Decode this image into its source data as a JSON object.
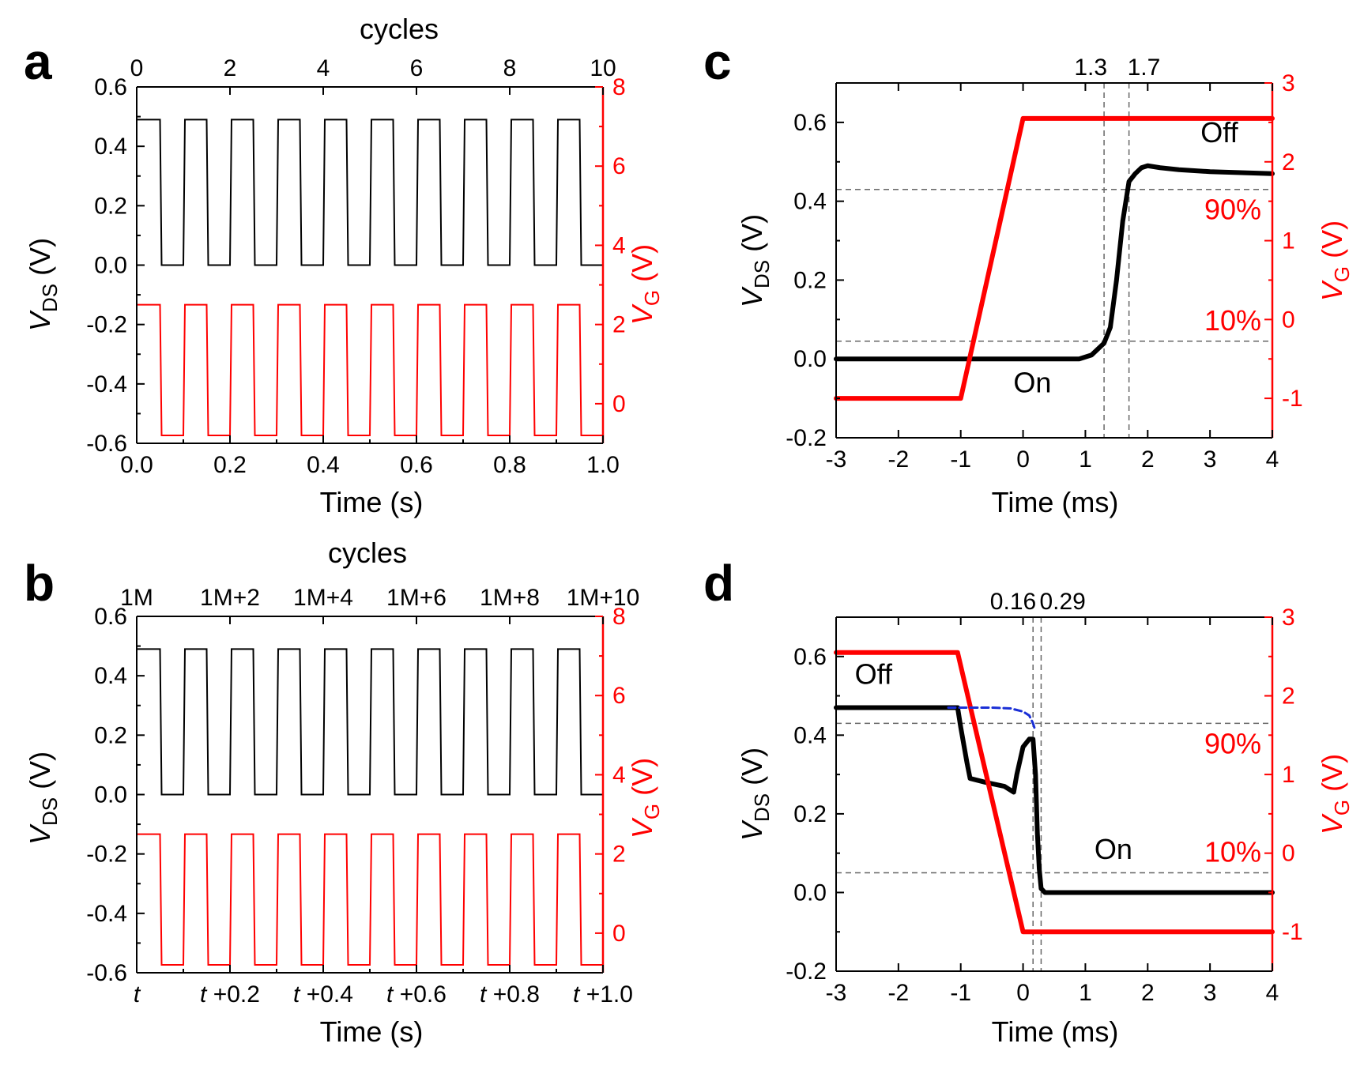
{
  "colors": {
    "vds": "#000000",
    "vg": "#ff0000",
    "guide": "#666666",
    "fit": "#1a2fd6"
  },
  "chart_data": [
    {
      "id": "a",
      "type": "line",
      "panel_label": "a",
      "xlabel": "Time (s)",
      "top_label": "cycles",
      "ylabel": {
        "main": "V",
        "sub": "DS",
        "unit": " (V)"
      },
      "y2label": {
        "main": "V",
        "sub": "G",
        "unit": " (V)"
      },
      "xlim": [
        0,
        1.0
      ],
      "ylim": [
        -0.6,
        0.6
      ],
      "y2lim": [
        -1.0,
        8.0
      ],
      "x_ticks": [
        "0.0",
        "0.2",
        "0.4",
        "0.6",
        "0.8",
        "1.0"
      ],
      "y_ticks": [
        "-0.6",
        "-0.4",
        "-0.2",
        "0.0",
        "0.2",
        "0.4",
        "0.6"
      ],
      "y2_ticks": [
        "0",
        "2",
        "4",
        "6",
        "8"
      ],
      "top_ticks": [
        "0",
        "2",
        "4",
        "6",
        "8",
        "10"
      ],
      "square_wave": {
        "period_s": 0.1,
        "start_s": 0.0,
        "end_s": 1.0,
        "first_fall_s": 0.05,
        "vds_high": 0.49,
        "vds_low": 0.0,
        "vg_high": 2.5,
        "vg_low": -0.8
      },
      "series": [
        {
          "name": "V_DS",
          "axis": "left"
        },
        {
          "name": "V_G",
          "axis": "right"
        }
      ]
    },
    {
      "id": "b",
      "type": "line",
      "panel_label": "b",
      "xlabel": "Time (s)",
      "top_label": "cycles",
      "ylabel": {
        "main": "V",
        "sub": "DS",
        "unit": " (V)"
      },
      "y2label": {
        "main": "V",
        "sub": "G",
        "unit": " (V)"
      },
      "xlim": [
        0,
        1.0
      ],
      "ylim": [
        -0.6,
        0.6
      ],
      "y2lim": [
        -1.0,
        8.0
      ],
      "x_ticks": [
        {
          "t": "t",
          "s": ""
        },
        {
          "t": "t",
          "s": " +0.2"
        },
        {
          "t": "t",
          "s": " +0.4"
        },
        {
          "t": "t",
          "s": " +0.6"
        },
        {
          "t": "t",
          "s": " +0.8"
        },
        {
          "t": "t",
          "s": " +1.0"
        }
      ],
      "y_ticks": [
        "-0.6",
        "-0.4",
        "-0.2",
        "0.0",
        "0.2",
        "0.4",
        "0.6"
      ],
      "y2_ticks": [
        "0",
        "2",
        "4",
        "6",
        "8"
      ],
      "top_ticks": [
        "1M",
        "1M+2",
        "1M+4",
        "1M+6",
        "1M+8",
        "1M+10"
      ],
      "square_wave": {
        "period_s": 0.1,
        "start_s": 0.0,
        "end_s": 1.0,
        "first_fall_s": 0.05,
        "vds_high": 0.49,
        "vds_low": 0.0,
        "vg_high": 2.5,
        "vg_low": -0.8
      },
      "series": [
        {
          "name": "V_DS",
          "axis": "left"
        },
        {
          "name": "V_G",
          "axis": "right"
        }
      ]
    },
    {
      "id": "c",
      "type": "line",
      "panel_label": "c",
      "xlabel": "Time (ms)",
      "ylabel": {
        "main": "V",
        "sub": "DS",
        "unit": " (V)"
      },
      "y2label": {
        "main": "V",
        "sub": "G",
        "unit": " (V)"
      },
      "xlim": [
        -3,
        4
      ],
      "ylim": [
        -0.2,
        0.7
      ],
      "y2lim": [
        -1.5,
        3.0
      ],
      "x_ticks": [
        "-3",
        "-2",
        "-1",
        "0",
        "1",
        "2",
        "3",
        "4"
      ],
      "y_ticks": [
        "-0.2",
        "0.0",
        "0.2",
        "0.4",
        "0.6"
      ],
      "y2_ticks": [
        "-1",
        "0",
        "1",
        "2",
        "3"
      ],
      "vlines": [
        {
          "x": 1.3,
          "label": "1.3"
        },
        {
          "x": 1.7,
          "label": "1.7"
        }
      ],
      "hlines": [
        {
          "y": 0.43,
          "label": "90%"
        },
        {
          "y": 0.045,
          "label": "10%"
        }
      ],
      "annotations": [
        {
          "text": "Off",
          "x": 3.15,
          "y": 0.55
        },
        {
          "text": "On",
          "x": 0.15,
          "y": -0.085
        }
      ],
      "series": [
        {
          "name": "V_DS",
          "axis": "left",
          "x": [
            -3,
            -1,
            0.5,
            0.9,
            1.1,
            1.3,
            1.4,
            1.5,
            1.6,
            1.7,
            1.8,
            1.9,
            2.0,
            2.2,
            2.5,
            3.0,
            4.0
          ],
          "y": [
            0.0,
            0.0,
            0.0,
            0.0,
            0.01,
            0.04,
            0.08,
            0.2,
            0.35,
            0.45,
            0.47,
            0.485,
            0.49,
            0.485,
            0.48,
            0.475,
            0.47
          ]
        },
        {
          "name": "V_G",
          "axis": "right",
          "x": [
            -3,
            -1,
            0,
            4
          ],
          "y": [
            -1.0,
            -1.0,
            2.55,
            2.55
          ]
        }
      ]
    },
    {
      "id": "d",
      "type": "line",
      "panel_label": "d",
      "xlabel": "Time (ms)",
      "ylabel": {
        "main": "V",
        "sub": "DS",
        "unit": " (V)"
      },
      "y2label": {
        "main": "V",
        "sub": "G",
        "unit": " (V)"
      },
      "xlim": [
        -3,
        4
      ],
      "ylim": [
        -0.2,
        0.7
      ],
      "y2lim": [
        -1.5,
        3.0
      ],
      "x_ticks": [
        "-3",
        "-2",
        "-1",
        "0",
        "1",
        "2",
        "3",
        "4"
      ],
      "y_ticks": [
        "-0.2",
        "0.0",
        "0.2",
        "0.4",
        "0.6"
      ],
      "y2_ticks": [
        "-1",
        "0",
        "1",
        "2",
        "3"
      ],
      "vlines": [
        {
          "x": 0.16,
          "label": "0.16"
        },
        {
          "x": 0.29,
          "label": "0.29"
        }
      ],
      "hlines": [
        {
          "y": 0.43,
          "label": "90%"
        },
        {
          "y": 0.05,
          "label": "10%"
        }
      ],
      "annotations": [
        {
          "text": "Off",
          "x": -2.4,
          "y": 0.53
        },
        {
          "text": "On",
          "x": 1.45,
          "y": 0.085
        }
      ],
      "series": [
        {
          "name": "V_DS",
          "axis": "left",
          "x": [
            -3,
            -1.2,
            -1.05,
            -1.0,
            -0.9,
            -0.85,
            -0.6,
            -0.3,
            -0.15,
            -0.1,
            0.0,
            0.1,
            0.16,
            0.2,
            0.23,
            0.26,
            0.29,
            0.35,
            4.0
          ],
          "y": [
            0.47,
            0.47,
            0.47,
            0.42,
            0.33,
            0.29,
            0.28,
            0.27,
            0.255,
            0.3,
            0.37,
            0.39,
            0.39,
            0.3,
            0.15,
            0.06,
            0.01,
            0.0,
            0.0
          ]
        },
        {
          "name": "V_G",
          "axis": "right",
          "x": [
            -3,
            -1.05,
            0,
            4
          ],
          "y": [
            2.55,
            2.55,
            -1.0,
            -1.0
          ]
        },
        {
          "name": "fit",
          "axis": "left",
          "style": "dashed",
          "x": [
            -1.2,
            -0.5,
            -0.2,
            0.0,
            0.1,
            0.16,
            0.2
          ],
          "y": [
            0.47,
            0.47,
            0.468,
            0.46,
            0.45,
            0.43,
            0.41
          ]
        }
      ]
    }
  ]
}
